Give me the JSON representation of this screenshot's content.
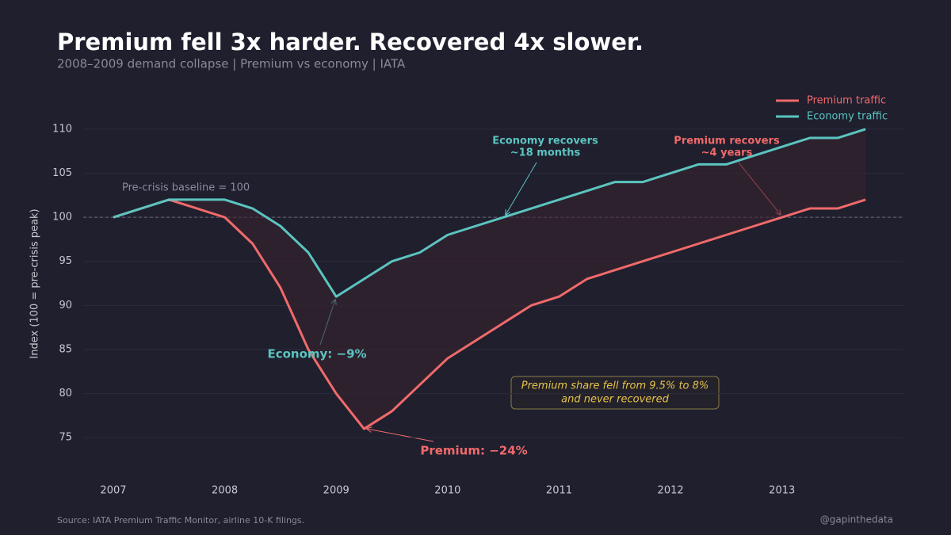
{
  "chart_data": {
    "type": "line",
    "title": "Premium fell 3x harder. Recovered 4x slower.",
    "subtitle": "2008–2009 demand collapse  |  Premium vs economy  |  IATA",
    "y_label": "Index (100 = pre-crisis peak)",
    "x": [
      2007,
      2007.5,
      2008,
      2008.25,
      2008.5,
      2008.75,
      2009,
      2009.25,
      2009.5,
      2009.75,
      2010,
      2010.25,
      2010.5,
      2010.75,
      2011,
      2011.25,
      2011.5,
      2011.75,
      2012,
      2012.25,
      2012.5,
      2012.75,
      2013,
      2013.25,
      2013.5,
      2013.75
    ],
    "series": [
      {
        "name": "Premium traffic",
        "color": "#f06a6a",
        "values": [
          100,
          102,
          100,
          97,
          92,
          85,
          80,
          76,
          78,
          81,
          84,
          86,
          88,
          90,
          91,
          93,
          94,
          95,
          96,
          97,
          98,
          99,
          100,
          101,
          101,
          102
        ]
      },
      {
        "name": "Economy traffic",
        "color": "#5bc4c0",
        "values": [
          100,
          102,
          102,
          101,
          99,
          96,
          91,
          93,
          95,
          96,
          98,
          99,
          100,
          101,
          102,
          103,
          104,
          104,
          105,
          106,
          106,
          107,
          108,
          109,
          109,
          110
        ]
      }
    ],
    "xlim": [
      2006.73,
      2014.09
    ],
    "ylim": [
      70.7,
      112.6
    ],
    "xticks": [
      2007,
      2008,
      2009,
      2010,
      2011,
      2012,
      2013
    ],
    "yticks": [
      75,
      80,
      85,
      90,
      95,
      100,
      105,
      110
    ],
    "grid": true,
    "legend": "upper right",
    "baseline": 100,
    "baseline_label": "Pre-crisis baseline = 100",
    "annotations": {
      "economy_recovers": [
        "Economy recovers",
        "~18 months"
      ],
      "premium_recovers": [
        "Premium recovers",
        "~4 years"
      ],
      "economy_drop": "Economy: −9%",
      "premium_drop": "Premium: −24%",
      "share_note": [
        "Premium share fell from 9.5% to 8%",
        "and never recovered"
      ]
    },
    "source": "Source: IATA Premium Traffic Monitor, airline 10-K filings.",
    "handle": "@gapinthedata"
  }
}
